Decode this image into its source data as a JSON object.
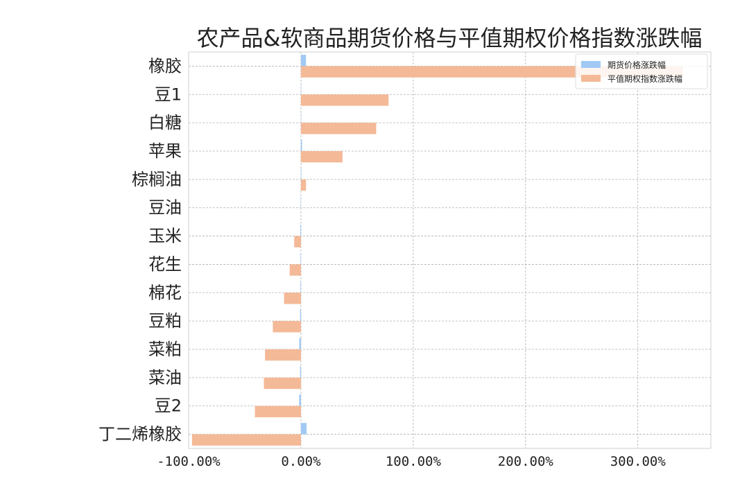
{
  "chart_data": {
    "type": "bar",
    "orientation": "horizontal",
    "title": "农产品&软商品期货价格与平值期权价格指数涨跌幅",
    "xlabel": "",
    "ylabel": "",
    "xlim": [
      -100,
      365
    ],
    "grid": true,
    "legend_position": "top-right",
    "x_ticks": [
      -100,
      0,
      100,
      200,
      300
    ],
    "x_tick_labels": [
      "-100.00%",
      "0.00%",
      "100.00%",
      "200.00%",
      "300.00%"
    ],
    "categories": [
      "橡胶",
      "豆1",
      "白糖",
      "苹果",
      "棕榈油",
      "豆油",
      "玉米",
      "花生",
      "棉花",
      "豆粕",
      "菜粕",
      "菜油",
      "豆2",
      "丁二烯橡胶"
    ],
    "series": [
      {
        "name": "期货价格涨跌幅",
        "color": "#a1c9f4",
        "values": [
          4.5,
          0.3,
          0.2,
          1.0,
          0.4,
          -0.3,
          -0.6,
          -0.4,
          -0.5,
          -0.8,
          -1.5,
          -0.8,
          -1.6,
          5.0
        ]
      },
      {
        "name": "平值期权指数涨跌幅",
        "color": "#f4b997",
        "values": [
          340,
          78,
          67,
          37,
          4.5,
          0.0,
          -6,
          -10,
          -15,
          -25,
          -32,
          -33,
          -41,
          -97
        ]
      }
    ]
  }
}
